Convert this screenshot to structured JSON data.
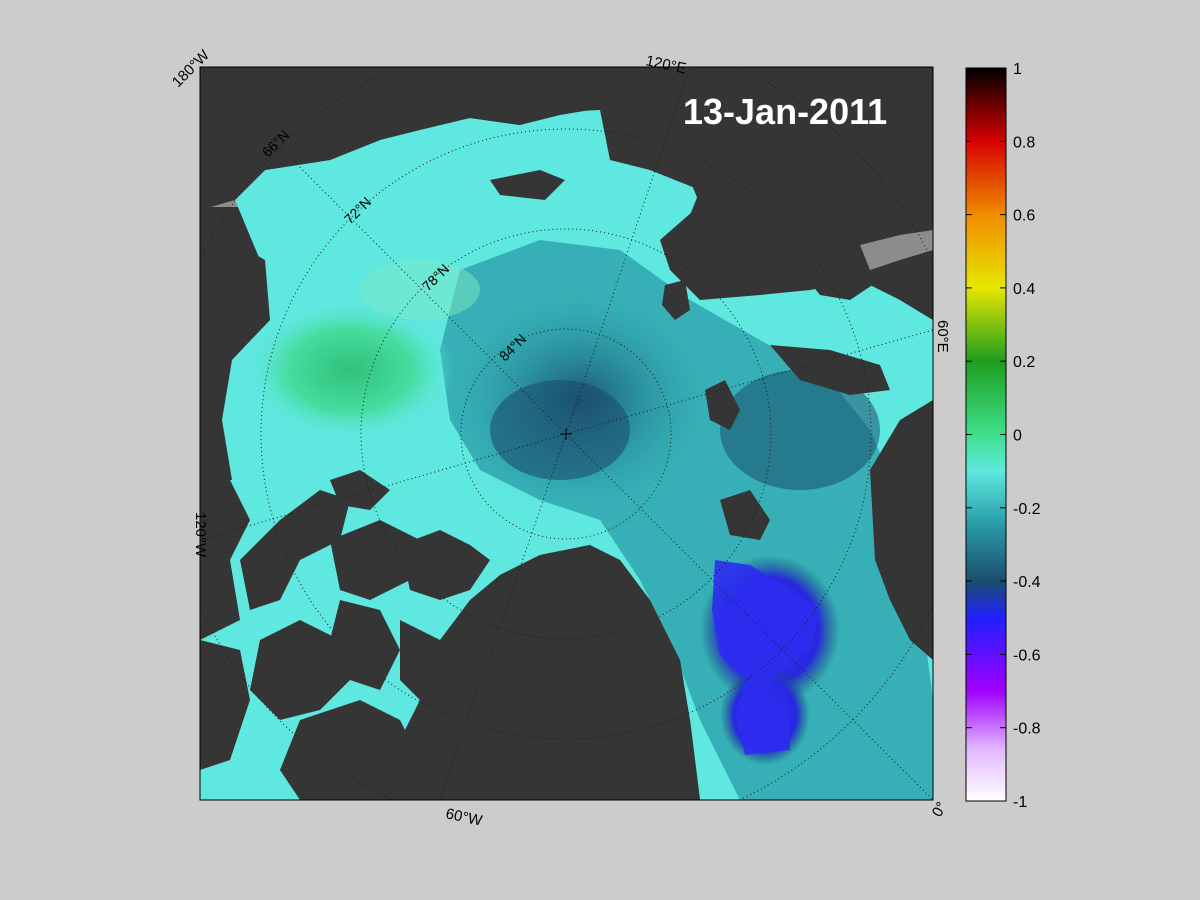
{
  "date_label": "13-Jan-2011",
  "corner_labels": {
    "top_left": "180°W",
    "top": "120°E",
    "right": "60°E",
    "left": "120°W",
    "bottom": "60°W",
    "bottom_right": "0°"
  },
  "latitude_labels": [
    "66°N",
    "72°N",
    "78°N",
    "84°N"
  ],
  "colorbar": {
    "ticks": [
      "1",
      "0.8",
      "0.6",
      "0.4",
      "0.2",
      "0",
      "-0.2",
      "-0.4",
      "-0.6",
      "-0.8",
      "-1"
    ],
    "range": [
      -1,
      1
    ],
    "colors": {
      "top": "#000000",
      "red": "#d60000",
      "orange": "#f08c00",
      "yellow": "#e6e600",
      "green": "#1f9d1f",
      "mint": "#3ee08a",
      "cyan": "#5ee8e0",
      "teal": "#2a9ea8",
      "dark_teal": "#1a4e6e",
      "blue": "#2020ff",
      "violet": "#a000ff",
      "lavender": "#e2b8ff",
      "bottom": "#ffffff"
    }
  },
  "colors": {
    "land": "#353535",
    "background": "#cccccc",
    "ice_edge": "#8c8c8c"
  }
}
